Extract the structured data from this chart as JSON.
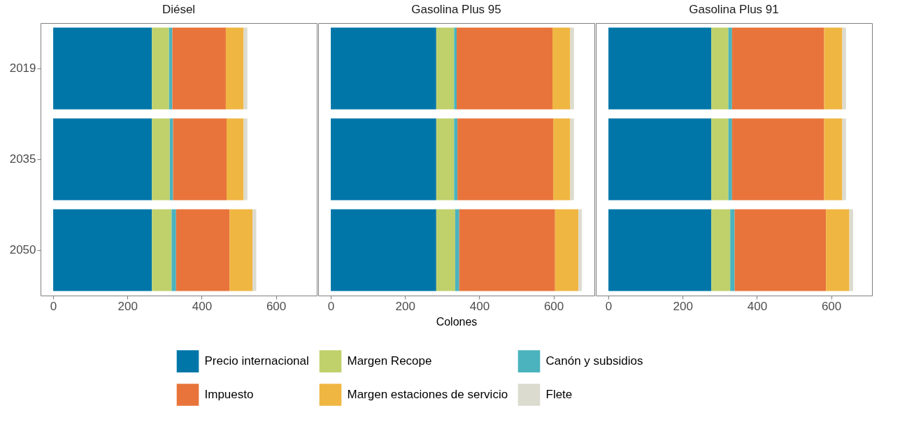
{
  "chart_data": [
    {
      "type": "bar",
      "orientation": "horizontal",
      "stacked": true,
      "title": "Diésel",
      "categories": [
        "2019",
        "2035",
        "2050"
      ],
      "xlim": [
        -34,
        710
      ],
      "xticks": [
        0,
        200,
        400,
        600
      ],
      "grid": false,
      "series": [
        {
          "color": "#0076a8",
          "values": [
            266,
            266,
            266
          ]
        },
        {
          "color": "#c0d16c",
          "values": [
            46,
            48,
            53
          ]
        },
        {
          "color": "#4bb3bd",
          "values": [
            9,
            9,
            12
          ]
        },
        {
          "color": "#e8743b",
          "values": [
            144,
            144,
            144
          ]
        },
        {
          "color": "#f0b642",
          "values": [
            48,
            46,
            62
          ]
        },
        {
          "color": "#dcdbcf",
          "values": [
            10,
            10,
            10
          ]
        }
      ]
    },
    {
      "type": "bar",
      "orientation": "horizontal",
      "stacked": true,
      "title": "Gasolina Plus 95",
      "xlabel": "Colones",
      "categories": [
        "2019",
        "2035",
        "2050"
      ],
      "xlim": [
        -34,
        710
      ],
      "xticks": [
        0,
        200,
        400,
        600
      ],
      "grid": false,
      "legend": "bottom",
      "tick_labels": "x",
      "series": [
        {
          "name": "Precio internacional",
          "color": "#0076a8",
          "values": [
            284,
            284,
            284
          ]
        },
        {
          "name": "Margen Recope",
          "color": "#c0d16c",
          "values": [
            48,
            48,
            51
          ]
        },
        {
          "name": "Canón y subsidios",
          "color": "#4bb3bd",
          "values": [
            7,
            9,
            11
          ]
        },
        {
          "name": "Impuesto",
          "color": "#e8743b",
          "values": [
            258,
            258,
            258
          ]
        },
        {
          "name": "Margen estaciones de servicio",
          "color": "#f0b642",
          "values": [
            48,
            46,
            63
          ]
        },
        {
          "name": "Flete",
          "color": "#dcdbcf",
          "values": [
            10,
            10,
            9
          ]
        }
      ]
    },
    {
      "type": "bar",
      "orientation": "horizontal",
      "stacked": true,
      "title": "Gasolina Plus 91",
      "categories": [
        "2019",
        "2035",
        "2050"
      ],
      "xlim": [
        -34,
        710
      ],
      "xticks": [
        0,
        200,
        400,
        600
      ],
      "grid": false,
      "tick_labels": "x",
      "series": [
        {
          "color": "#0076a8",
          "values": [
            277,
            277,
            277
          ]
        },
        {
          "color": "#c0d16c",
          "values": [
            46,
            46,
            51
          ]
        },
        {
          "color": "#4bb3bd",
          "values": [
            10,
            10,
            12
          ]
        },
        {
          "color": "#e8743b",
          "values": [
            248,
            248,
            246
          ]
        },
        {
          "color": "#f0b642",
          "values": [
            49,
            49,
            63
          ]
        },
        {
          "color": "#dcdbcf",
          "values": [
            10,
            10,
            10
          ]
        }
      ]
    }
  ]
}
